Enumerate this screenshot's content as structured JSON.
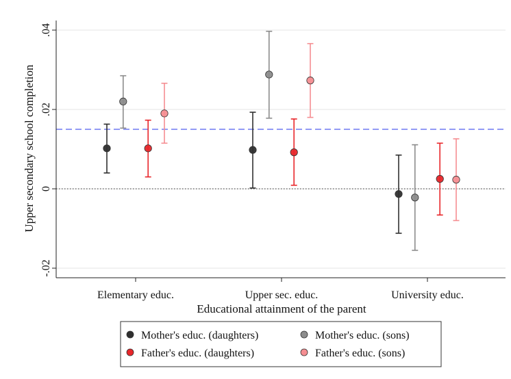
{
  "chart_data": {
    "type": "scatter",
    "subtype": "point-estimate with confidence intervals",
    "ylabel": "Upper secondary school completion",
    "xlabel": "Educational attainment of the parent",
    "categories": [
      "Elementary educ.",
      "Upper sec. educ.",
      "University educ."
    ],
    "ylim": [
      -0.021,
      0.041
    ],
    "yticks": [
      -0.02,
      0,
      0.02,
      0.04
    ],
    "ytick_labels": [
      "-.02",
      "0",
      ".02",
      ".04"
    ],
    "grid": "horizontal",
    "reference_lines": [
      {
        "y": 0.015,
        "style": "dashed",
        "color": "#6f79f2"
      },
      {
        "y": 0,
        "style": "dotted",
        "color": "#555555"
      }
    ],
    "series": [
      {
        "name": "Mother's educ. (daughters)",
        "color": "#2f2f2f",
        "offset": -0.3,
        "points": [
          {
            "y": 0.0102,
            "lo": 0.004,
            "hi": 0.0163
          },
          {
            "y": 0.0098,
            "lo": 0.0002,
            "hi": 0.0193
          },
          {
            "y": -0.0013,
            "lo": -0.0112,
            "hi": 0.0085
          }
        ]
      },
      {
        "name": "Mother's educ. (sons)",
        "color": "#8c8c8c",
        "offset": -0.13,
        "points": [
          {
            "y": 0.022,
            "lo": 0.0153,
            "hi": 0.0285
          },
          {
            "y": 0.0288,
            "lo": 0.0178,
            "hi": 0.0397
          },
          {
            "y": -0.0022,
            "lo": -0.0155,
            "hi": 0.0111
          }
        ]
      },
      {
        "name": "Father's educ. (daughters)",
        "color": "#e8262a",
        "offset": 0.13,
        "points": [
          {
            "y": 0.0102,
            "lo": 0.003,
            "hi": 0.0173
          },
          {
            "y": 0.0092,
            "lo": 0.0009,
            "hi": 0.0176
          },
          {
            "y": 0.0025,
            "lo": -0.0066,
            "hi": 0.0115
          }
        ]
      },
      {
        "name": "Father's educ. (sons)",
        "color": "#f58e92",
        "offset": 0.3,
        "points": [
          {
            "y": 0.019,
            "lo": 0.0115,
            "hi": 0.0266
          },
          {
            "y": 0.0273,
            "lo": 0.018,
            "hi": 0.0366
          },
          {
            "y": 0.0023,
            "lo": -0.008,
            "hi": 0.0126
          }
        ]
      }
    ],
    "legend": {
      "placement": "bottom",
      "rows": [
        [
          "Mother's educ. (daughters)",
          "Mother's educ. (sons)"
        ],
        [
          "Father's educ. (daughters)",
          "Father's educ. (sons)"
        ]
      ]
    }
  }
}
